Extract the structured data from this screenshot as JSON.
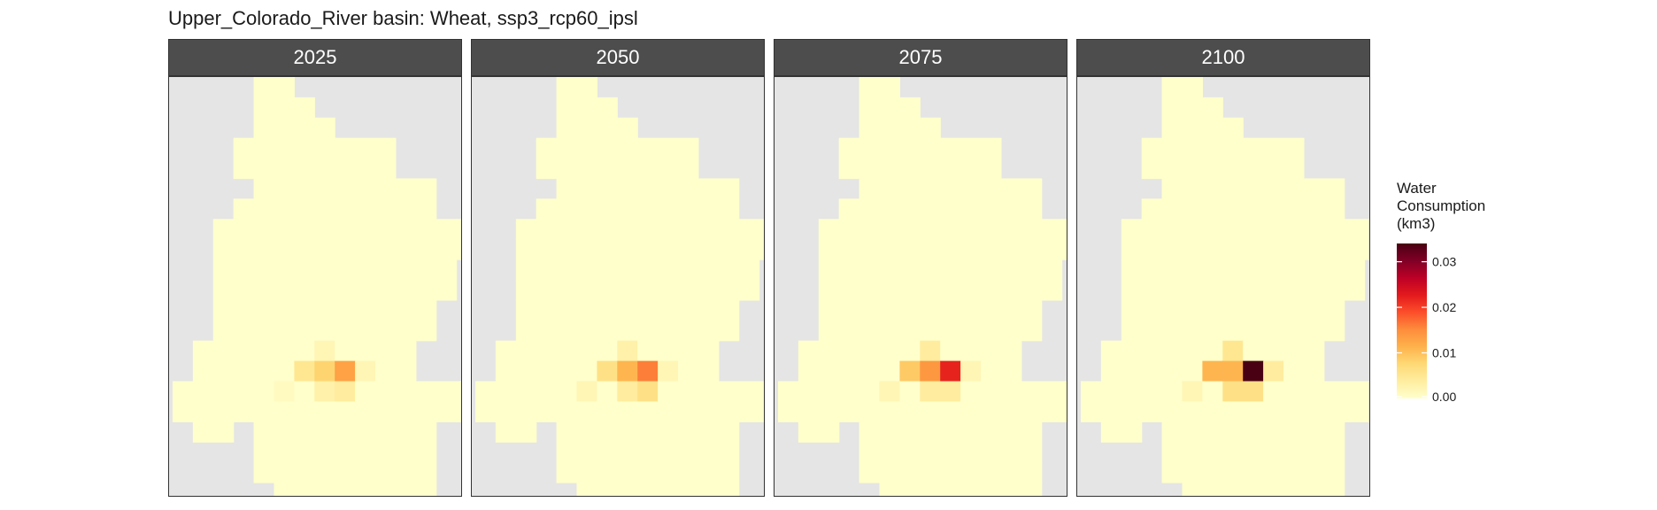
{
  "chart_data": {
    "type": "heatmap",
    "title": "Upper_Colorado_River basin: Wheat, ssp3_rcp60_ipsl",
    "facets": [
      "2025",
      "2050",
      "2075",
      "2100"
    ],
    "legend": {
      "title_lines": [
        "Water",
        "Consumption",
        "(km3)"
      ],
      "ticks": [
        "0.00",
        "0.01",
        "0.02",
        "0.03"
      ],
      "tick_values": [
        0,
        0.01,
        0.02,
        0.03
      ],
      "range": [
        0,
        0.034
      ],
      "colors": [
        "#ffffcc",
        "#ffeda0",
        "#fed976",
        "#feb24c",
        "#fd8d3c",
        "#fc4e2a",
        "#e31a1c",
        "#bd0026",
        "#800026",
        "#4a0013"
      ]
    },
    "grid_rows": [
      "....xx..........",
      "....xxx.........",
      "....xxxx........",
      "...xxxxxxxx.....",
      "...xxxxxxxx.....",
      "....xxxxxxxxx...",
      "...xxxxxxxxxx...",
      "..xxxxxxxxxxxxx.",
      "..xxxxxxxxxxxxx.",
      "..xxxxxxxxxxxx..",
      "..xxxxxxxxxxxx..",
      "..xxxxxxxxxxx...",
      "..xxxxxxxxxxx...",
      ".xxxxxxxxxxx....",
      ".xxxxxxxxxxx....",
      "xxxxxxxxxxxxxxx.",
      "xxxxxxxxxxxxxxx.",
      ".xx.xxxxxxxxx...",
      "....xxxxxxxxx...",
      "....xxxxxxxxx...",
      ".....xxxxxxxx...",
      "........xx......"
    ],
    "hotspots": [
      {
        "row": 4,
        "col": 11,
        "values": [
          0.002,
          0.002,
          0.002,
          0.003
        ]
      },
      {
        "row": 13,
        "col": 7,
        "values": [
          0.002,
          0.003,
          0.004,
          0.005
        ]
      },
      {
        "row": 14,
        "col": 6,
        "values": [
          0.005,
          0.006,
          0.009,
          0.011
        ]
      },
      {
        "row": 14,
        "col": 7,
        "values": [
          0.008,
          0.011,
          0.014,
          0.011
        ]
      },
      {
        "row": 14,
        "col": 8,
        "values": [
          0.013,
          0.016,
          0.022,
          0.034
        ]
      },
      {
        "row": 14,
        "col": 9,
        "values": [
          0.002,
          0.002,
          0.002,
          0.004
        ]
      },
      {
        "row": 15,
        "col": 5,
        "values": [
          0.001,
          0.002,
          0.002,
          0.002
        ]
      },
      {
        "row": 15,
        "col": 7,
        "values": [
          0.003,
          0.004,
          0.004,
          0.006
        ]
      },
      {
        "row": 15,
        "col": 8,
        "values": [
          0.004,
          0.006,
          0.004,
          0.006
        ]
      }
    ]
  }
}
